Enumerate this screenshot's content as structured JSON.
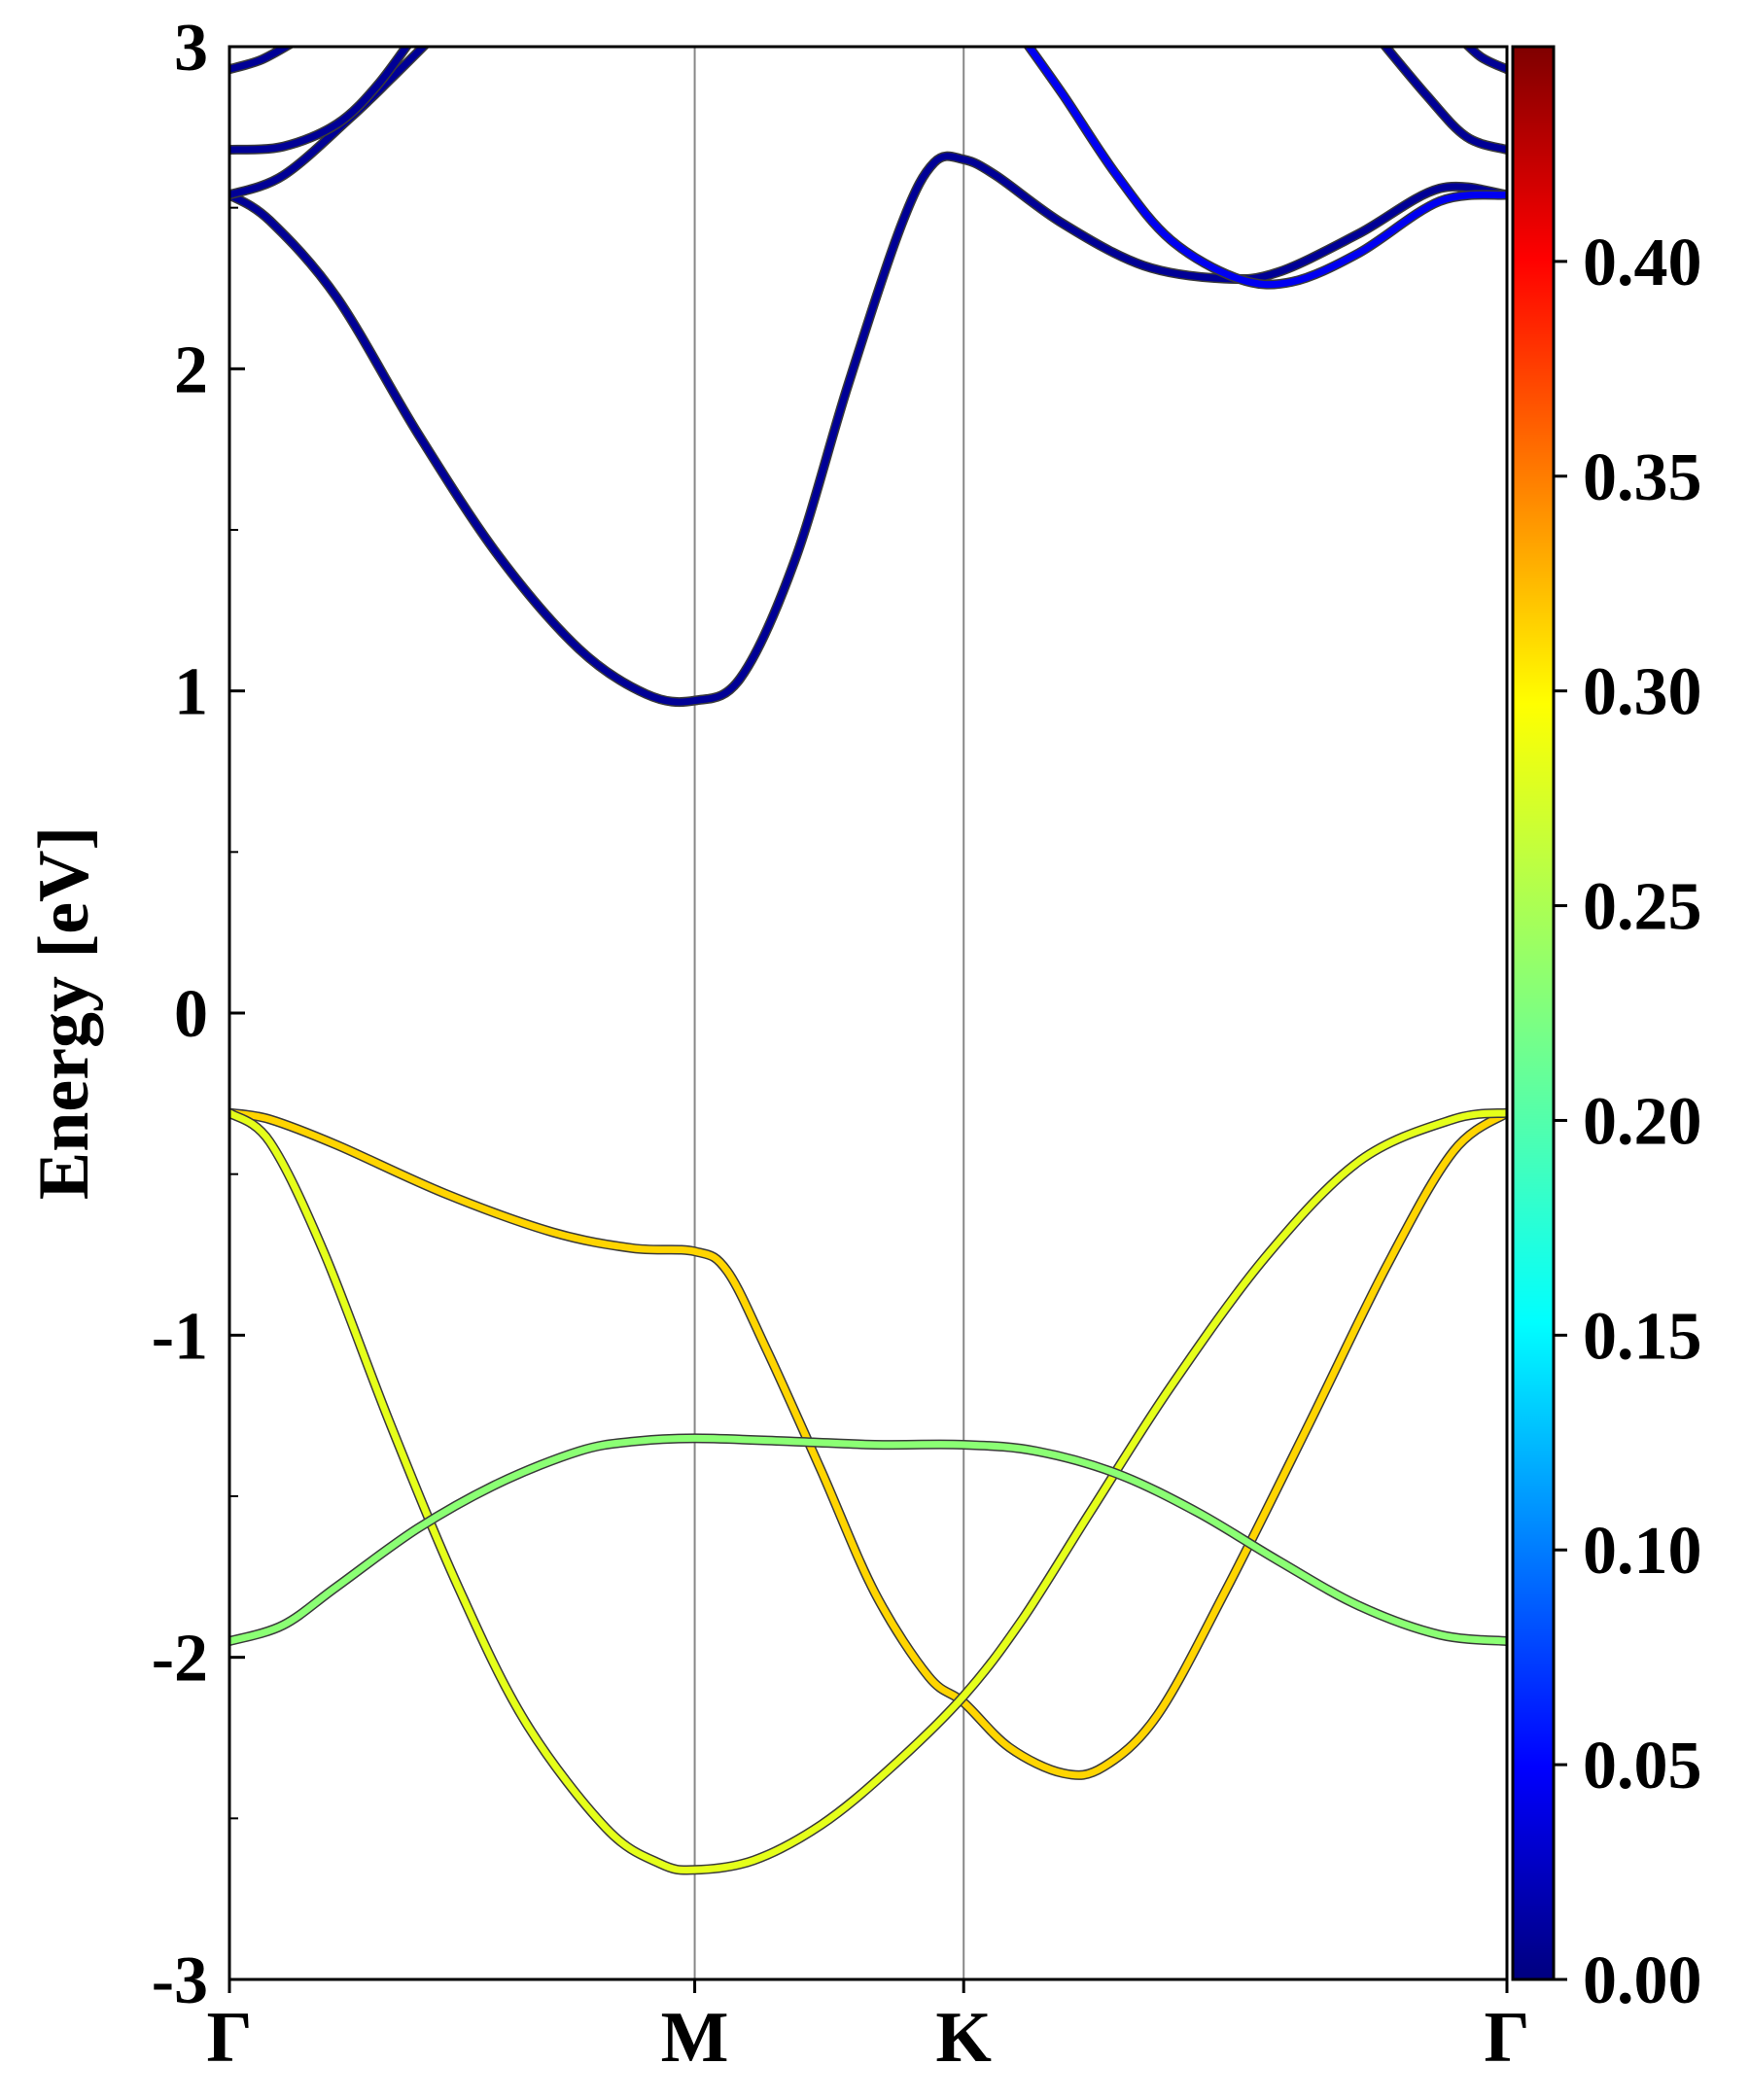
{
  "chart_data": {
    "type": "line",
    "title": "",
    "ylabel": "Energy [eV]",
    "xlabel": "",
    "ylim": [
      -3,
      3
    ],
    "xlim": [
      0,
      4.75
    ],
    "yticks": [
      "-3",
      "-2",
      "-1",
      "0",
      "1",
      "2",
      "3"
    ],
    "ytick_values": [
      -3,
      -2,
      -1,
      0,
      1,
      2,
      3
    ],
    "yminor_values": [
      -2.5,
      -1.5,
      -0.5,
      0.5,
      1.5,
      2.5
    ],
    "kpoints": [
      {
        "label": "Γ",
        "x": 0
      },
      {
        "label": "M",
        "x": 1.73
      },
      {
        "label": "K",
        "x": 2.73
      },
      {
        "label": "Γ",
        "x": 4.75
      }
    ],
    "grid": false,
    "colorbar": {
      "colormap": "jet",
      "range": [
        0,
        0.45
      ],
      "ticks": [
        "0.00",
        "0.05",
        "0.10",
        "0.15",
        "0.20",
        "0.25",
        "0.30",
        "0.35",
        "0.40"
      ],
      "tick_values": [
        0,
        0.05,
        0.1,
        0.15,
        0.2,
        0.25,
        0.3,
        0.35,
        0.4
      ]
    },
    "series": [
      {
        "weight": 0.01,
        "points": [
          [
            0,
            2.54
          ],
          [
            0.15,
            2.46
          ],
          [
            0.4,
            2.22
          ],
          [
            0.7,
            1.8
          ],
          [
            1.0,
            1.42
          ],
          [
            1.3,
            1.13
          ],
          [
            1.55,
            0.99
          ],
          [
            1.73,
            0.97
          ],
          [
            1.9,
            1.04
          ],
          [
            2.1,
            1.4
          ],
          [
            2.3,
            1.95
          ],
          [
            2.5,
            2.45
          ],
          [
            2.62,
            2.64
          ],
          [
            2.73,
            2.65
          ],
          [
            2.85,
            2.6
          ],
          [
            3.1,
            2.45
          ],
          [
            3.4,
            2.32
          ],
          [
            3.7,
            2.28
          ],
          [
            3.9,
            2.3
          ],
          [
            4.2,
            2.42
          ],
          [
            4.5,
            2.56
          ],
          [
            4.75,
            2.54
          ]
        ]
      },
      {
        "weight": 0.01,
        "points": [
          [
            0,
            2.54
          ],
          [
            0.2,
            2.6
          ],
          [
            0.45,
            2.78
          ],
          [
            0.6,
            2.9
          ],
          [
            0.78,
            3.05
          ]
        ]
      },
      {
        "weight": 0.01,
        "points": [
          [
            0,
            2.68
          ],
          [
            0.2,
            2.69
          ],
          [
            0.4,
            2.76
          ],
          [
            0.55,
            2.88
          ],
          [
            0.7,
            3.05
          ]
        ]
      },
      {
        "weight": 0.01,
        "points": [
          [
            0,
            2.93
          ],
          [
            0.12,
            2.96
          ],
          [
            0.25,
            3.02
          ]
        ]
      },
      {
        "weight": 0.05,
        "points": [
          [
            2.93,
            3.05
          ],
          [
            3.1,
            2.85
          ],
          [
            3.3,
            2.6
          ],
          [
            3.5,
            2.4
          ],
          [
            3.75,
            2.28
          ],
          [
            3.95,
            2.27
          ],
          [
            4.2,
            2.36
          ],
          [
            4.5,
            2.52
          ],
          [
            4.75,
            2.54
          ]
        ]
      },
      {
        "weight": 0.01,
        "points": [
          [
            4.25,
            3.05
          ],
          [
            4.45,
            2.85
          ],
          [
            4.6,
            2.72
          ],
          [
            4.75,
            2.68
          ]
        ]
      },
      {
        "weight": 0.01,
        "points": [
          [
            4.55,
            3.05
          ],
          [
            4.65,
            2.97
          ],
          [
            4.75,
            2.93
          ]
        ]
      },
      {
        "weight": 0.3,
        "points": [
          [
            0,
            -0.31
          ],
          [
            0.15,
            -0.33
          ],
          [
            0.4,
            -0.41
          ],
          [
            0.8,
            -0.56
          ],
          [
            1.2,
            -0.68
          ],
          [
            1.5,
            -0.73
          ],
          [
            1.73,
            -0.74
          ],
          [
            1.85,
            -0.8
          ],
          [
            2.0,
            -1.05
          ],
          [
            2.2,
            -1.42
          ],
          [
            2.4,
            -1.8
          ],
          [
            2.6,
            -2.06
          ],
          [
            2.73,
            -2.14
          ],
          [
            2.9,
            -2.28
          ],
          [
            3.1,
            -2.36
          ],
          [
            3.25,
            -2.34
          ],
          [
            3.45,
            -2.18
          ],
          [
            3.7,
            -1.8
          ],
          [
            4.0,
            -1.3
          ],
          [
            4.3,
            -0.79
          ],
          [
            4.55,
            -0.43
          ],
          [
            4.75,
            -0.31
          ]
        ]
      },
      {
        "weight": 0.27,
        "points": [
          [
            0,
            -0.31
          ],
          [
            0.15,
            -0.4
          ],
          [
            0.35,
            -0.74
          ],
          [
            0.6,
            -1.28
          ],
          [
            0.85,
            -1.78
          ],
          [
            1.1,
            -2.2
          ],
          [
            1.4,
            -2.53
          ],
          [
            1.6,
            -2.64
          ],
          [
            1.73,
            -2.66
          ],
          [
            1.95,
            -2.63
          ],
          [
            2.2,
            -2.52
          ],
          [
            2.45,
            -2.35
          ],
          [
            2.73,
            -2.12
          ],
          [
            2.95,
            -1.88
          ],
          [
            3.2,
            -1.55
          ],
          [
            3.5,
            -1.16
          ],
          [
            3.85,
            -0.76
          ],
          [
            4.2,
            -0.46
          ],
          [
            4.55,
            -0.33
          ],
          [
            4.75,
            -0.31
          ]
        ]
      },
      {
        "weight": 0.23,
        "points": [
          [
            0,
            -1.95
          ],
          [
            0.2,
            -1.9
          ],
          [
            0.4,
            -1.78
          ],
          [
            0.7,
            -1.6
          ],
          [
            1.0,
            -1.46
          ],
          [
            1.3,
            -1.36
          ],
          [
            1.5,
            -1.33
          ],
          [
            1.73,
            -1.32
          ],
          [
            2.1,
            -1.33
          ],
          [
            2.4,
            -1.34
          ],
          [
            2.73,
            -1.34
          ],
          [
            3.0,
            -1.36
          ],
          [
            3.3,
            -1.43
          ],
          [
            3.6,
            -1.55
          ],
          [
            3.9,
            -1.7
          ],
          [
            4.2,
            -1.84
          ],
          [
            4.5,
            -1.93
          ],
          [
            4.75,
            -1.95
          ]
        ]
      }
    ]
  }
}
